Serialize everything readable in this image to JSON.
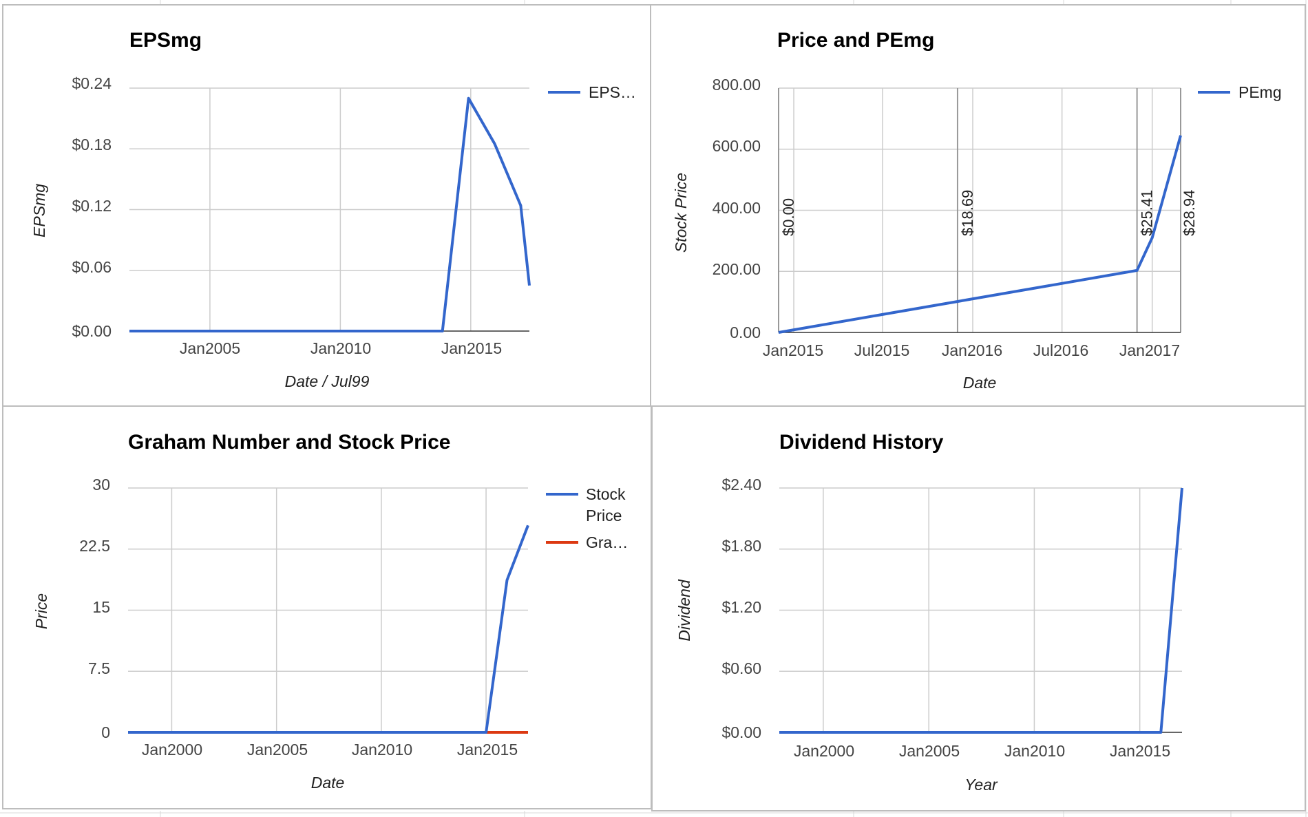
{
  "chart_data": [
    {
      "type": "line",
      "title": "EPSmg",
      "xlabel": "Date / Jul99",
      "ylabel": "EPSmg",
      "x_ticks": [
        "Jan2005",
        "Jan2010",
        "Jan2015"
      ],
      "y_ticks": [
        "$0.24",
        "$0.18",
        "$0.12",
        "$0.06",
        "$0.00"
      ],
      "ylim": [
        0,
        0.24
      ],
      "xlim": [
        "2001-12-01",
        "2017-04-01"
      ],
      "legend": "right",
      "grid": true,
      "series": [
        {
          "name": "EPS…",
          "color": "#3366cc",
          "points": [
            [
              "2001-12-01",
              0
            ],
            [
              "2013-12-01",
              0
            ],
            [
              "2014-12-01",
              0.23
            ],
            [
              "2015-12-01",
              0.185
            ],
            [
              "2016-12-01",
              0.124
            ],
            [
              "2017-04-01",
              0.045
            ]
          ]
        }
      ]
    },
    {
      "type": "line",
      "title": "Price and PEmg",
      "xlabel": "Date",
      "ylabel": "Stock Price",
      "x_ticks": [
        "Jan2015",
        "Jul2015",
        "Jan2016",
        "Jul2016",
        "Jan2017"
      ],
      "y_ticks": [
        "800.00",
        "600.00",
        "400.00",
        "200.00",
        "0.00"
      ],
      "ylim": [
        0,
        800
      ],
      "xlim": [
        "2014-12-01",
        "2017-02-28"
      ],
      "legend": "right",
      "grid": true,
      "series": [
        {
          "name": "PEmg",
          "color": "#3366cc",
          "points": [
            [
              "2014-12-01",
              0
            ],
            [
              "2016-12-01",
              203
            ],
            [
              "2017-01-01",
              310
            ],
            [
              "2017-02-28",
              645
            ]
          ]
        }
      ],
      "annotations": [
        {
          "date": "2014-12-01",
          "label": "$0.00"
        },
        {
          "date": "2015-12-01",
          "label": "$18.69"
        },
        {
          "date": "2016-12-01",
          "label": "$25.41"
        },
        {
          "date": "2017-02-28",
          "label": "$28.94"
        }
      ]
    },
    {
      "type": "line",
      "title": "Graham Number and Stock Price",
      "xlabel": "Date",
      "ylabel": "Price",
      "x_ticks": [
        "Jan2000",
        "Jan2005",
        "Jan2010",
        "Jan2015"
      ],
      "y_ticks": [
        "30",
        "22.5",
        "15",
        "7.5",
        "0"
      ],
      "ylim": [
        0,
        30
      ],
      "xlim": [
        "1997-12-01",
        "2017-01-01"
      ],
      "legend": "right",
      "grid": true,
      "series": [
        {
          "name": "Stock Price",
          "color": "#3366cc",
          "points": [
            [
              "1997-12-01",
              0
            ],
            [
              "2015-01-01",
              0
            ],
            [
              "2016-01-01",
              18.69
            ],
            [
              "2017-01-01",
              25.41
            ]
          ]
        },
        {
          "name": "Gra…",
          "color": "#dc3912",
          "points": [
            [
              "1997-12-01",
              0
            ],
            [
              "2017-01-01",
              0
            ]
          ]
        }
      ]
    },
    {
      "type": "line",
      "title": "Dividend History",
      "xlabel": "Year",
      "ylabel": "Dividend",
      "x_ticks": [
        "Jan2000",
        "Jan2005",
        "Jan2010",
        "Jan2015"
      ],
      "y_ticks": [
        "$2.40",
        "$1.80",
        "$1.20",
        "$0.60",
        "$0.00"
      ],
      "ylim": [
        0,
        2.4
      ],
      "xlim": [
        "1997-12-01",
        "2017-01-01"
      ],
      "legend": "none",
      "grid": true,
      "series": [
        {
          "name": "Dividend",
          "color": "#3366cc",
          "points": [
            [
              "1997-12-01",
              0
            ],
            [
              "2016-01-01",
              0
            ],
            [
              "2017-01-01",
              2.4
            ]
          ]
        }
      ]
    }
  ]
}
